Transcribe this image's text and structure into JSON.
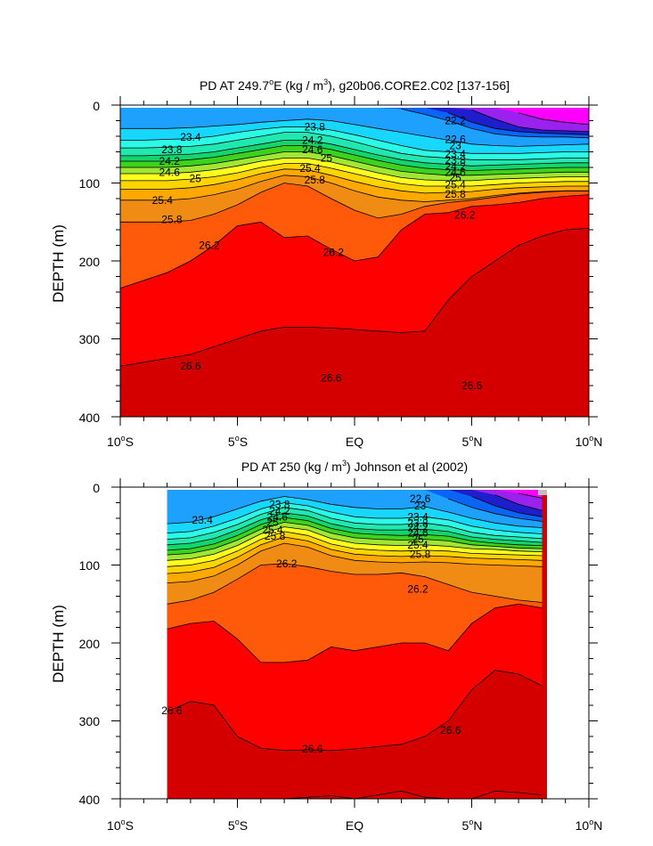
{
  "colors": {
    "bands": [
      "#ff00ff",
      "#9b22ee",
      "#1e1ecc",
      "#0a64f5",
      "#1ea0ff",
      "#18d7ff",
      "#2afae6",
      "#20e8b0",
      "#14d46e",
      "#3cd21e",
      "#a0e632",
      "#ffff1e",
      "#ffd400",
      "#ffa800",
      "#f08c14",
      "#ff5a0a",
      "#ff0000",
      "#d40000"
    ],
    "background": "#ffffff",
    "missing": "#bfbfbf"
  },
  "chart_data": [
    {
      "type": "contour",
      "title_text": "PD AT 249.7",
      "title_deg": "o",
      "title_mid": "E (kg / m",
      "title_sup": "3",
      "title_end": "), g20b06.CORE2.C02 [137-156]",
      "ylabel": "DEPTH (m)",
      "xlim": [
        -10,
        10
      ],
      "ylim": [
        0,
        400
      ],
      "yticks": [
        "0",
        "100",
        "200",
        "300",
        "400"
      ],
      "xticks": [
        {
          "num": "10",
          "sup": "o",
          "suf": "S"
        },
        {
          "num": "5",
          "sup": "o",
          "suf": "S"
        },
        {
          "num": "EQ",
          "sup": "",
          "suf": ""
        },
        {
          "num": "5",
          "sup": "o",
          "suf": "N"
        },
        {
          "num": "10",
          "sup": "o",
          "suf": "N"
        }
      ],
      "contour_labels": [
        {
          "text": "23.4",
          "lat": -7.0,
          "depth": 41
        },
        {
          "text": "23.8",
          "lat": -7.8,
          "depth": 57
        },
        {
          "text": "24.2",
          "lat": -7.9,
          "depth": 72
        },
        {
          "text": "24.6",
          "lat": -7.9,
          "depth": 86
        },
        {
          "text": "25",
          "lat": -6.8,
          "depth": 94
        },
        {
          "text": "25.4",
          "lat": -8.2,
          "depth": 122
        },
        {
          "text": "25.8",
          "lat": -7.8,
          "depth": 147
        },
        {
          "text": "26.2",
          "lat": -6.2,
          "depth": 180
        },
        {
          "text": "23.8",
          "lat": -1.7,
          "depth": 28
        },
        {
          "text": "24.2",
          "lat": -1.8,
          "depth": 45
        },
        {
          "text": "24.6",
          "lat": -1.8,
          "depth": 57
        },
        {
          "text": "25",
          "lat": -1.2,
          "depth": 68
        },
        {
          "text": "25.4",
          "lat": -1.9,
          "depth": 81
        },
        {
          "text": "25.8",
          "lat": -1.7,
          "depth": 96
        },
        {
          "text": "26.2",
          "lat": -0.9,
          "depth": 189
        },
        {
          "text": "22.2",
          "lat": 4.3,
          "depth": 20
        },
        {
          "text": "22.6",
          "lat": 4.3,
          "depth": 44
        },
        {
          "text": "23",
          "lat": 4.3,
          "depth": 52
        },
        {
          "text": "23.4",
          "lat": 4.3,
          "depth": 63
        },
        {
          "text": "23.8",
          "lat": 4.3,
          "depth": 71
        },
        {
          "text": "24.2",
          "lat": 4.3,
          "depth": 79
        },
        {
          "text": "24.6",
          "lat": 4.3,
          "depth": 86
        },
        {
          "text": "25",
          "lat": 4.3,
          "depth": 93
        },
        {
          "text": "25.4",
          "lat": 4.3,
          "depth": 102
        },
        {
          "text": "25.8",
          "lat": 4.3,
          "depth": 114
        },
        {
          "text": "26.2",
          "lat": 4.7,
          "depth": 141
        },
        {
          "text": "26.6",
          "lat": -7.0,
          "depth": 335
        },
        {
          "text": "26.6",
          "lat": -1.0,
          "depth": 350
        },
        {
          "text": "26.6",
          "lat": 5.0,
          "depth": 360
        }
      ]
    },
    {
      "type": "contour",
      "title_text": "PD AT 250 (kg / m",
      "title_sup": "3",
      "title_end": ") Johnson et al (2002)",
      "ylabel": "DEPTH (m)",
      "xlim": [
        -10,
        10
      ],
      "ylim": [
        0,
        400
      ],
      "data_lat_range": [
        -8.0,
        8.2
      ],
      "yticks": [
        "0",
        "100",
        "200",
        "300",
        "400"
      ],
      "xticks": [
        {
          "num": "10",
          "sup": "o",
          "suf": "S"
        },
        {
          "num": "5",
          "sup": "o",
          "suf": "S"
        },
        {
          "num": "EQ",
          "sup": "",
          "suf": ""
        },
        {
          "num": "5",
          "sup": "o",
          "suf": "N"
        },
        {
          "num": "10",
          "sup": "o",
          "suf": "N"
        }
      ],
      "contour_labels": [
        {
          "text": "23.4",
          "lat": -6.5,
          "depth": 42
        },
        {
          "text": "23.8",
          "lat": -3.2,
          "depth": 22
        },
        {
          "text": "24.2",
          "lat": -3.2,
          "depth": 31
        },
        {
          "text": "24.6",
          "lat": -3.3,
          "depth": 38
        },
        {
          "text": "25",
          "lat": -3.5,
          "depth": 45
        },
        {
          "text": "25.4",
          "lat": -3.5,
          "depth": 55
        },
        {
          "text": "25.8",
          "lat": -3.4,
          "depth": 63
        },
        {
          "text": "26.2",
          "lat": -2.9,
          "depth": 98
        },
        {
          "text": "22.6",
          "lat": 2.8,
          "depth": 15
        },
        {
          "text": "23",
          "lat": 2.8,
          "depth": 24
        },
        {
          "text": "23.4",
          "lat": 2.7,
          "depth": 38
        },
        {
          "text": "23.8",
          "lat": 2.7,
          "depth": 46
        },
        {
          "text": "24.2",
          "lat": 2.7,
          "depth": 52
        },
        {
          "text": "24.6",
          "lat": 2.7,
          "depth": 59
        },
        {
          "text": "25",
          "lat": 2.7,
          "depth": 67
        },
        {
          "text": "25.4",
          "lat": 2.7,
          "depth": 74
        },
        {
          "text": "25.8",
          "lat": 2.8,
          "depth": 86
        },
        {
          "text": "26.2",
          "lat": 2.7,
          "depth": 131
        },
        {
          "text": "26.6",
          "lat": -7.8,
          "depth": 287
        },
        {
          "text": "26.6",
          "lat": -1.8,
          "depth": 336
        },
        {
          "text": "26.6",
          "lat": 4.1,
          "depth": 312
        }
      ]
    }
  ]
}
